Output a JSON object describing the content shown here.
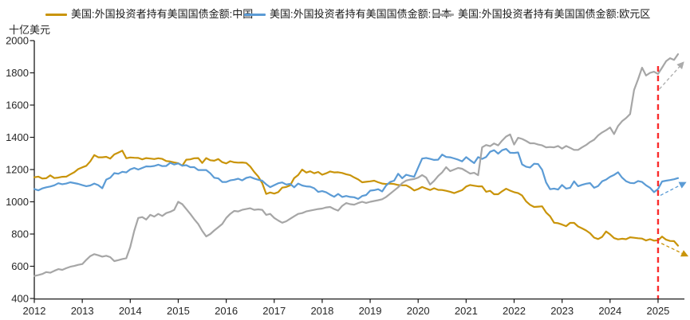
{
  "page": {
    "background": "#FFFFFF"
  },
  "unit_label": "十亿美元",
  "chart_data": {
    "type": "line",
    "title": "",
    "ylabel": "十亿美元",
    "xlabel": "",
    "frequency": "monthly",
    "x_start_year": 2012,
    "ylim": [
      400,
      2000
    ],
    "y_ticks": [
      2000,
      1800,
      1600,
      1400,
      1200,
      1000,
      800,
      600,
      400
    ],
    "x_ticks": [
      2012,
      2013,
      2014,
      2015,
      2016,
      2017,
      2018,
      2019,
      2020,
      2021,
      2022,
      2023,
      2024,
      2025
    ],
    "legend_position": "top",
    "grid": false,
    "series": [
      {
        "name": "美国:外国投资者持有美国国债金额:中国",
        "color": "#C9940A",
        "values": [
          1152,
          1156,
          1144,
          1146,
          1164,
          1147,
          1150,
          1155,
          1156,
          1170,
          1183,
          1203,
          1214,
          1223,
          1251,
          1290,
          1276,
          1276,
          1279,
          1268,
          1294,
          1305,
          1317,
          1270,
          1275,
          1273,
          1272,
          1263,
          1271,
          1268,
          1265,
          1270,
          1266,
          1253,
          1250,
          1244,
          1239,
          1224,
          1261,
          1263,
          1270,
          1271,
          1241,
          1271,
          1258,
          1255,
          1265,
          1246,
          1238,
          1252,
          1245,
          1243,
          1244,
          1241,
          1219,
          1185,
          1157,
          1116,
          1049,
          1058,
          1051,
          1060,
          1088,
          1092,
          1102,
          1147,
          1166,
          1200,
          1181,
          1189,
          1177,
          1185,
          1168,
          1177,
          1188,
          1182,
          1183,
          1179,
          1171,
          1165,
          1151,
          1139,
          1121,
          1124,
          1127,
          1131,
          1121,
          1113,
          1110,
          1113,
          1110,
          1104,
          1102,
          1102,
          1089,
          1070,
          1079,
          1092,
          1082,
          1073,
          1084,
          1074,
          1073,
          1068,
          1062,
          1054,
          1063,
          1072,
          1095,
          1104,
          1100,
          1096,
          1096,
          1062,
          1068,
          1047,
          1047,
          1065,
          1081,
          1069,
          1060,
          1054,
          1039,
          1003,
          981,
          968,
          970,
          972,
          934,
          910,
          870,
          867,
          859,
          849,
          869,
          869,
          847,
          835,
          822,
          805,
          778,
          769,
          782,
          816,
          798,
          775,
          767,
          771,
          768,
          780,
          777,
          774,
          772,
          760,
          768,
          759,
          761,
          784,
          765,
          757,
          756,
          728
        ]
      },
      {
        "name": "美国:外国投资者持有美国国债金额:日本",
        "color": "#5B9BD5",
        "values": [
          1079,
          1071,
          1083,
          1090,
          1095,
          1102,
          1115,
          1109,
          1113,
          1121,
          1116,
          1111,
          1103,
          1097,
          1101,
          1113,
          1103,
          1084,
          1138,
          1149,
          1178,
          1174,
          1186,
          1182,
          1201,
          1210,
          1200,
          1210,
          1220,
          1219,
          1222,
          1230,
          1221,
          1222,
          1242,
          1231,
          1238,
          1224,
          1227,
          1215,
          1215,
          1197,
          1197,
          1197,
          1177,
          1149,
          1145,
          1123,
          1123,
          1133,
          1137,
          1143,
          1133,
          1148,
          1154,
          1144,
          1137,
          1131,
          1108,
          1091,
          1103,
          1115,
          1120,
          1107,
          1111,
          1090,
          1113,
          1101,
          1096,
          1094,
          1084,
          1061,
          1066,
          1059,
          1044,
          1031,
          1049,
          1030,
          1036,
          1030,
          1028,
          1018,
          1036,
          1042,
          1069,
          1072,
          1078,
          1064,
          1101,
          1123,
          1131,
          1174,
          1146,
          1168,
          1161,
          1155,
          1212,
          1268,
          1272,
          1266,
          1260,
          1261,
          1293,
          1278,
          1276,
          1269,
          1261,
          1251,
          1277,
          1258,
          1240,
          1277,
          1266,
          1278,
          1310,
          1320,
          1299,
          1320,
          1328,
          1304,
          1303,
          1306,
          1232,
          1218,
          1213,
          1236,
          1234,
          1199,
          1120,
          1078,
          1082,
          1076,
          1104,
          1082,
          1087,
          1127,
          1097,
          1105,
          1112,
          1116,
          1087,
          1098,
          1127,
          1138,
          1155,
          1167,
          1183,
          1150,
          1128,
          1117,
          1115,
          1129,
          1123,
          1102,
          1087,
          1060,
          1079,
          1126,
          1131,
          1135,
          1140,
          1147
        ]
      },
      {
        "name": "美国:外国投资者持有美国国债金额:欧元区",
        "color": "#A6A6A6",
        "values": [
          540,
          545,
          552,
          564,
          560,
          572,
          582,
          578,
          588,
          597,
          602,
          609,
          614,
          640,
          663,
          675,
          668,
          660,
          665,
          657,
          632,
          638,
          645,
          650,
          720,
          820,
          900,
          905,
          890,
          919,
          908,
          925,
          912,
          930,
          938,
          950,
          1000,
          985,
          955,
          925,
          892,
          862,
          820,
          785,
          800,
          822,
          842,
          862,
          900,
          925,
          943,
          940,
          950,
          955,
          960,
          950,
          953,
          950,
          919,
          925,
          900,
          884,
          870,
          879,
          895,
          910,
          925,
          930,
          940,
          945,
          950,
          955,
          958,
          965,
          968,
          955,
          945,
          975,
          992,
          985,
          982,
          992,
          1000,
          993,
          1000,
          1005,
          1010,
          1016,
          1030,
          1050,
          1070,
          1090,
          1116,
          1132,
          1138,
          1141,
          1150,
          1166,
          1150,
          1107,
          1130,
          1160,
          1182,
          1215,
          1190,
          1200,
          1210,
          1205,
          1190,
          1175,
          1180,
          1165,
          1338,
          1352,
          1345,
          1362,
          1350,
          1380,
          1405,
          1418,
          1355,
          1397,
          1390,
          1378,
          1363,
          1363,
          1355,
          1350,
          1338,
          1340,
          1338,
          1346,
          1330,
          1346,
          1335,
          1322,
          1322,
          1338,
          1352,
          1371,
          1385,
          1412,
          1430,
          1444,
          1461,
          1420,
          1470,
          1500,
          1519,
          1544,
          1694,
          1760,
          1832,
          1783,
          1800,
          1807,
          1793,
          1832,
          1872,
          1891,
          1880,
          1916
        ]
      }
    ],
    "annotations": {
      "vline": {
        "t": 2025.0,
        "v_top": 1842,
        "v_bottom": 400,
        "color": "#FA2C2C",
        "style": "dashed"
      },
      "trend_arrows": [
        {
          "series": "欧元区",
          "from_t": 2025.03,
          "from_v": 1700,
          "to_t": 2025.52,
          "to_v": 1862,
          "color": "#ABABAB"
        },
        {
          "series": "日本",
          "from_t": 2025.05,
          "from_v": 1040,
          "to_t": 2025.56,
          "to_v": 1118,
          "color": "#5B9BD5"
        },
        {
          "series": "中国",
          "from_t": 2025.07,
          "from_v": 742,
          "to_t": 2025.6,
          "to_v": 666,
          "color": "#C9940A"
        }
      ]
    }
  }
}
